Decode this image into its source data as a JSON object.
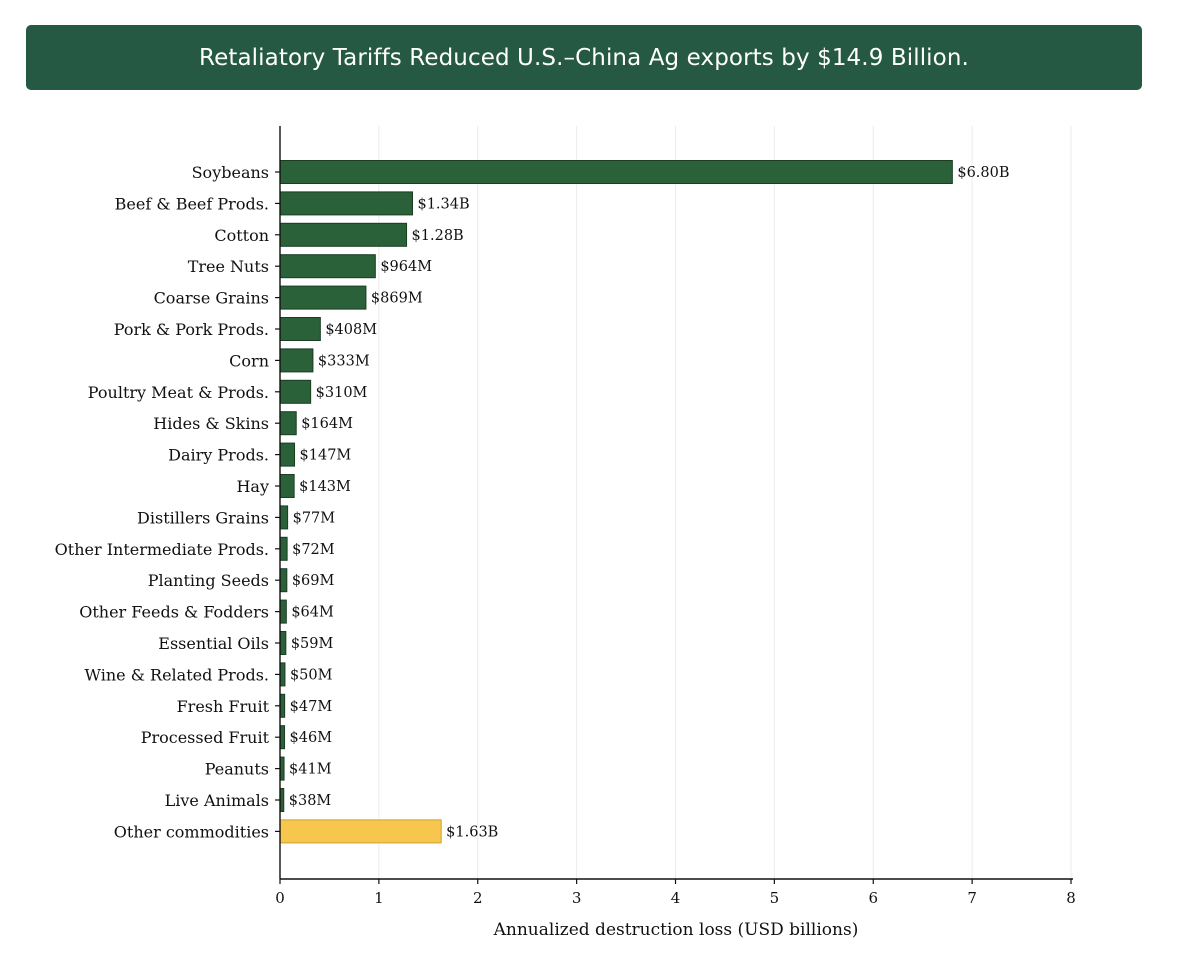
{
  "header": {
    "title": "Retaliatory Tariffs Reduced U.S.–China Ag exports by $14.9 Billion."
  },
  "colors": {
    "banner_bg": "#265943",
    "bar_primary": "#2a6138",
    "bar_other": "#f7c74d",
    "bar_other_edge": "#c9a235",
    "grid": "#ebebeb"
  },
  "chart_data": {
    "type": "bar",
    "orientation": "horizontal",
    "xlabel": "Annualized destruction loss (USD billions)",
    "ylabel": "",
    "xlim": [
      0,
      8
    ],
    "xticks": [
      0,
      1,
      2,
      3,
      4,
      5,
      6,
      7,
      8
    ],
    "grid": "vertical",
    "categories": [
      "Soybeans",
      "Beef & Beef Prods.",
      "Cotton",
      "Tree Nuts",
      "Coarse Grains",
      "Pork & Pork Prods.",
      "Corn",
      "Poultry Meat & Prods.",
      "Hides & Skins",
      "Dairy Prods.",
      "Hay",
      "Distillers Grains",
      "Other Intermediate Prods.",
      "Planting Seeds",
      "Other Feeds & Fodders",
      "Essential Oils",
      "Wine & Related Prods.",
      "Fresh Fruit",
      "Processed Fruit",
      "Peanuts",
      "Live Animals",
      "Other commodities"
    ],
    "values": [
      6.8,
      1.34,
      1.28,
      0.964,
      0.869,
      0.408,
      0.333,
      0.31,
      0.164,
      0.147,
      0.143,
      0.077,
      0.072,
      0.069,
      0.064,
      0.059,
      0.05,
      0.047,
      0.046,
      0.041,
      0.038,
      1.63
    ],
    "data_labels": [
      "$6.80B",
      "$1.34B",
      "$1.28B",
      "$964M",
      "$869M",
      "$408M",
      "$333M",
      "$310M",
      "$164M",
      "$147M",
      "$143M",
      "$77M",
      "$72M",
      "$69M",
      "$64M",
      "$59M",
      "$50M",
      "$47M",
      "$46M",
      "$41M",
      "$38M",
      "$1.63B"
    ],
    "highlight_category": "Other commodities"
  }
}
